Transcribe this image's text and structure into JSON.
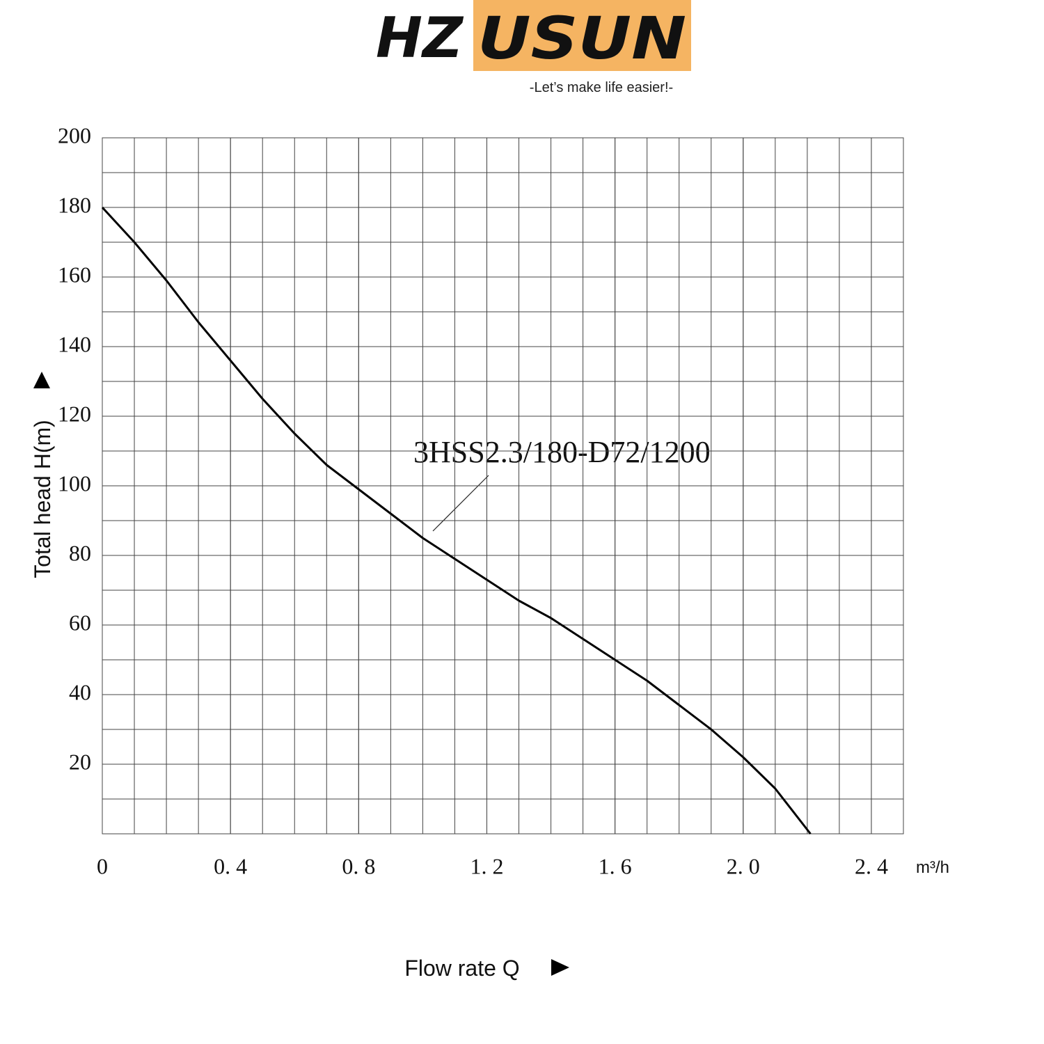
{
  "logo": {
    "left": "HZ",
    "right": "USUN",
    "tagline": "-Let’s make life easier!-"
  },
  "chart_data": {
    "type": "line",
    "x_label": "Flow rate Q",
    "y_label": "Total head H(m)",
    "x_unit": "m³/h",
    "x": [
      0,
      0.1,
      0.2,
      0.3,
      0.4,
      0.5,
      0.6,
      0.7,
      0.8,
      0.9,
      1.0,
      1.1,
      1.2,
      1.3,
      1.4,
      1.5,
      1.6,
      1.7,
      1.8,
      1.9,
      2.0,
      2.1,
      2.21
    ],
    "series": [
      {
        "name": "3HSS2.3/180-D72/1200",
        "color": "#000000",
        "values": [
          180,
          170,
          159,
          147,
          136,
          125,
          115,
          106,
          99,
          92,
          85,
          79,
          73,
          67,
          62,
          56,
          50,
          44,
          37,
          30,
          22,
          13,
          0
        ]
      }
    ],
    "xlim": [
      0,
      2.5
    ],
    "ylim": [
      0,
      200
    ],
    "xticks": [
      0,
      {
        "value": 0.4,
        "label": "0. 4"
      },
      {
        "value": 0.8,
        "label": "0. 8"
      },
      {
        "value": 1.2,
        "label": "1. 2"
      },
      {
        "value": 1.6,
        "label": "1. 6"
      },
      {
        "value": 2.0,
        "label": "2. 0"
      },
      {
        "value": 2.4,
        "label": "2. 4"
      }
    ],
    "yticks": [
      20,
      40,
      60,
      80,
      100,
      120,
      140,
      160,
      180,
      200
    ],
    "grid": true,
    "grid_subdivisions": {
      "x": 4,
      "y": 2
    }
  }
}
